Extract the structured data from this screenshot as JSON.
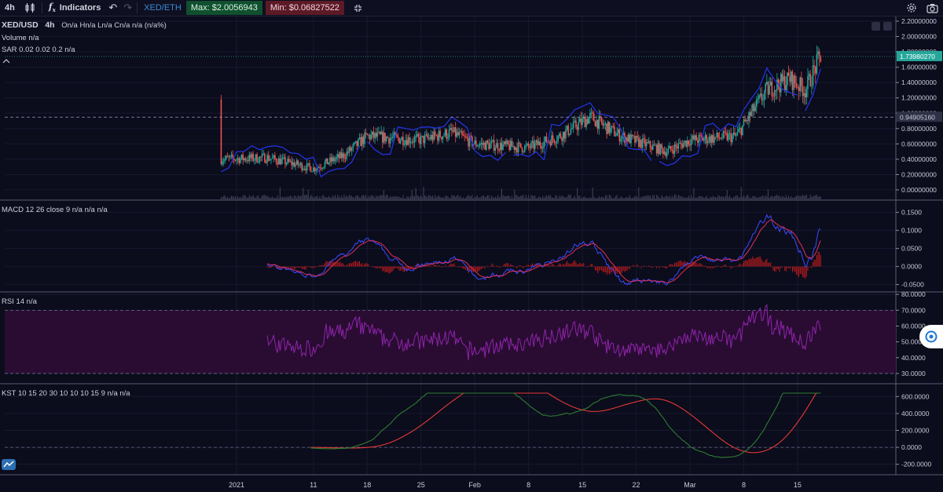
{
  "toolbar": {
    "interval": "4h",
    "indicators_label": "Indicators",
    "pair": "XED/ETH",
    "max_label": "Max: $2.0056943",
    "min_label": "Min: $0.06827522"
  },
  "legends": {
    "title": "XED/USD",
    "interval": "4h",
    "ohlc": "On/a Hn/a Ln/a Cn/a n/a (n/a%)",
    "volume": "Volume  n/a",
    "sar": "SAR 0.02 0.02 0.2  n/a",
    "macd": "MACD 12 26 close 9  n/a  n/a  n/a",
    "rsi": "RSI 14  n/a",
    "kst": "KST 10 15 20 30 10 10 10 15 9  n/a  n/a"
  },
  "price_axis": {
    "labels": [
      "2.20000000",
      "2.00000000",
      "1.80000000",
      "1.60000000",
      "1.40000000",
      "1.20000000",
      "1.00000000",
      "0.80000000",
      "0.60000000",
      "0.40000000",
      "0.20000000",
      "0.00000000"
    ],
    "current_price": "1.73980270",
    "crosshair_price": "0.94905160"
  },
  "macd_axis": {
    "labels": [
      "0.1500",
      "0.1000",
      "0.0500",
      "0.0000",
      "-0.0500"
    ]
  },
  "rsi_axis": {
    "labels": [
      "80.0000",
      "70.0000",
      "60.0000",
      "50.0000",
      "40.0000",
      "30.0000"
    ]
  },
  "kst_axis": {
    "labels": [
      "600.0000",
      "400.0000",
      "200.0000",
      "0.0000",
      "-200.0000"
    ]
  },
  "time_axis": {
    "labels": [
      "2021",
      "11",
      "18",
      "25",
      "Feb",
      "8",
      "15",
      "22",
      "Mar",
      "8",
      "15"
    ]
  },
  "colors": {
    "background": "#0b0c1c",
    "candle_up": "#26a69a",
    "candle_down": "#ef5350",
    "sar": "#2233dd",
    "macd_line": "#3b4bff",
    "signal_line": "#e0305a",
    "macd_hist": "#b71c1c",
    "rsi": "#8e24aa",
    "rsi_band": "#2a0c33",
    "kst_line": "#2e7d32",
    "kst_signal": "#e53935",
    "current_price_bg": "#26a69a"
  },
  "chart_data": {
    "type": "candlestick",
    "title": "XED/USD",
    "interval": "4h",
    "x_ticks": [
      "2021",
      "11",
      "18",
      "25",
      "Feb",
      "8",
      "15",
      "22",
      "Mar",
      "8",
      "15"
    ],
    "price": {
      "ylim": [
        0,
        2.2
      ],
      "current": 1.7398027,
      "crosshair": 0.9490516,
      "max": 2.0056943,
      "min": 0.06827522,
      "approx_close_path": [
        {
          "x": "2020-12-30",
          "y": 0.4
        },
        {
          "x": "2021-01-05",
          "y": 0.42
        },
        {
          "x": "2021-01-11",
          "y": 0.28
        },
        {
          "x": "2021-01-15",
          "y": 0.45
        },
        {
          "x": "2021-01-18",
          "y": 0.7
        },
        {
          "x": "2021-01-25",
          "y": 0.65
        },
        {
          "x": "2021-01-29",
          "y": 0.75
        },
        {
          "x": "2021-02-01",
          "y": 0.6
        },
        {
          "x": "2021-02-08",
          "y": 0.55
        },
        {
          "x": "2021-02-12",
          "y": 0.7
        },
        {
          "x": "2021-02-16",
          "y": 0.95
        },
        {
          "x": "2021-02-20",
          "y": 0.7
        },
        {
          "x": "2021-02-26",
          "y": 0.5
        },
        {
          "x": "2021-03-01",
          "y": 0.65
        },
        {
          "x": "2021-03-07",
          "y": 0.7
        },
        {
          "x": "2021-03-11",
          "y": 1.3
        },
        {
          "x": "2021-03-14",
          "y": 1.45
        },
        {
          "x": "2021-03-16",
          "y": 1.3
        },
        {
          "x": "2021-03-18",
          "y": 1.75
        }
      ]
    },
    "macd": {
      "ylim": [
        -0.06,
        0.16
      ]
    },
    "rsi": {
      "ylim": [
        25,
        80
      ],
      "bands": [
        30,
        70
      ]
    },
    "kst": {
      "ylim": [
        -280,
        700
      ]
    }
  }
}
